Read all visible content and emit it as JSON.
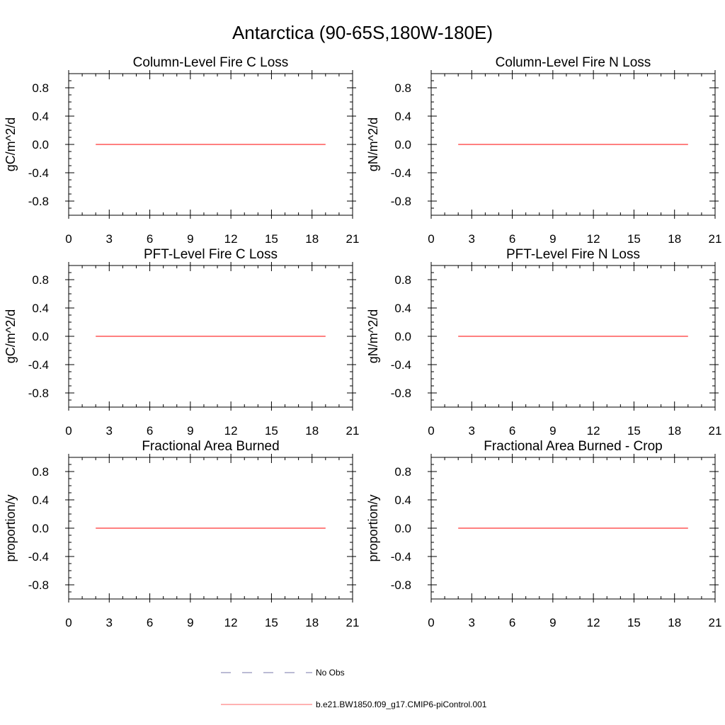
{
  "figure_title": "Antarctica (90-65S,180W-180E)",
  "chart_data": [
    {
      "type": "line",
      "title": "Column-Level Fire C Loss",
      "xlabel": "",
      "ylabel": "gC/m^2/d",
      "xlim": [
        0,
        21
      ],
      "ylim": [
        -1,
        1
      ],
      "xticks": [
        0,
        3,
        6,
        9,
        12,
        15,
        18,
        21
      ],
      "xtick_labels": [
        "0",
        "3",
        "6",
        "9",
        "12",
        "15",
        "18",
        "21"
      ],
      "yticks": [
        -0.8,
        -0.4,
        0.0,
        0.4,
        0.8
      ],
      "ytick_labels": [
        "-0.8",
        "-0.4",
        "0.0",
        "0.4",
        "0.8"
      ],
      "series": [
        {
          "name": "b.e21.BW1850.f09_g17.CMIP6-piControl.001",
          "color": "#ff0000",
          "x": [
            2,
            19
          ],
          "values": [
            0,
            0
          ]
        }
      ]
    },
    {
      "type": "line",
      "title": "Column-Level Fire N Loss",
      "xlabel": "",
      "ylabel": "gN/m^2/d",
      "xlim": [
        0,
        21
      ],
      "ylim": [
        -1,
        1
      ],
      "xticks": [
        0,
        3,
        6,
        9,
        12,
        15,
        18,
        21
      ],
      "xtick_labels": [
        "0",
        "3",
        "6",
        "9",
        "12",
        "15",
        "18",
        "21"
      ],
      "yticks": [
        -0.8,
        -0.4,
        0.0,
        0.4,
        0.8
      ],
      "ytick_labels": [
        "-0.8",
        "-0.4",
        "0.0",
        "0.4",
        "0.8"
      ],
      "series": [
        {
          "name": "b.e21.BW1850.f09_g17.CMIP6-piControl.001",
          "color": "#ff0000",
          "x": [
            2,
            19
          ],
          "values": [
            0,
            0
          ]
        }
      ]
    },
    {
      "type": "line",
      "title": "PFT-Level Fire C Loss",
      "xlabel": "",
      "ylabel": "gC/m^2/d",
      "xlim": [
        0,
        21
      ],
      "ylim": [
        -1,
        1
      ],
      "xticks": [
        0,
        3,
        6,
        9,
        12,
        15,
        18,
        21
      ],
      "xtick_labels": [
        "0",
        "3",
        "6",
        "9",
        "12",
        "15",
        "18",
        "21"
      ],
      "yticks": [
        -0.8,
        -0.4,
        0.0,
        0.4,
        0.8
      ],
      "ytick_labels": [
        "-0.8",
        "-0.4",
        "0.0",
        "0.4",
        "0.8"
      ],
      "series": [
        {
          "name": "b.e21.BW1850.f09_g17.CMIP6-piControl.001",
          "color": "#ff0000",
          "x": [
            2,
            19
          ],
          "values": [
            0,
            0
          ]
        }
      ]
    },
    {
      "type": "line",
      "title": "PFT-Level Fire N Loss",
      "xlabel": "",
      "ylabel": "gN/m^2/d",
      "xlim": [
        0,
        21
      ],
      "ylim": [
        -1,
        1
      ],
      "xticks": [
        0,
        3,
        6,
        9,
        12,
        15,
        18,
        21
      ],
      "xtick_labels": [
        "0",
        "3",
        "6",
        "9",
        "12",
        "15",
        "18",
        "21"
      ],
      "yticks": [
        -0.8,
        -0.4,
        0.0,
        0.4,
        0.8
      ],
      "ytick_labels": [
        "-0.8",
        "-0.4",
        "0.0",
        "0.4",
        "0.8"
      ],
      "series": [
        {
          "name": "b.e21.BW1850.f09_g17.CMIP6-piControl.001",
          "color": "#ff0000",
          "x": [
            2,
            19
          ],
          "values": [
            0,
            0
          ]
        }
      ]
    },
    {
      "type": "line",
      "title": "Fractional Area Burned",
      "xlabel": "",
      "ylabel": "proportion/y",
      "xlim": [
        0,
        21
      ],
      "ylim": [
        -1,
        1
      ],
      "xticks": [
        0,
        3,
        6,
        9,
        12,
        15,
        18,
        21
      ],
      "xtick_labels": [
        "0",
        "3",
        "6",
        "9",
        "12",
        "15",
        "18",
        "21"
      ],
      "yticks": [
        -0.8,
        -0.4,
        0.0,
        0.4,
        0.8
      ],
      "ytick_labels": [
        "-0.8",
        "-0.4",
        "0.0",
        "0.4",
        "0.8"
      ],
      "series": [
        {
          "name": "b.e21.BW1850.f09_g17.CMIP6-piControl.001",
          "color": "#ff0000",
          "x": [
            2,
            19
          ],
          "values": [
            0,
            0
          ]
        }
      ]
    },
    {
      "type": "line",
      "title": "Fractional Area Burned - Crop",
      "xlabel": "",
      "ylabel": "proportion/y",
      "xlim": [
        0,
        21
      ],
      "ylim": [
        -1,
        1
      ],
      "xticks": [
        0,
        3,
        6,
        9,
        12,
        15,
        18,
        21
      ],
      "xtick_labels": [
        "0",
        "3",
        "6",
        "9",
        "12",
        "15",
        "18",
        "21"
      ],
      "yticks": [
        -0.8,
        -0.4,
        0.0,
        0.4,
        0.8
      ],
      "ytick_labels": [
        "-0.8",
        "-0.4",
        "0.0",
        "0.4",
        "0.8"
      ],
      "series": [
        {
          "name": "b.e21.BW1850.f09_g17.CMIP6-piControl.001",
          "color": "#ff0000",
          "x": [
            2,
            19
          ],
          "values": [
            0,
            0
          ]
        }
      ]
    }
  ],
  "legend": {
    "placement": "bottom",
    "items": [
      {
        "label": "No Obs",
        "color": "#7777aa",
        "style": "dashed"
      },
      {
        "label": "b.e21.BW1850.f09_g17.CMIP6-piControl.001",
        "color": "#ff6666",
        "style": "solid"
      }
    ]
  }
}
